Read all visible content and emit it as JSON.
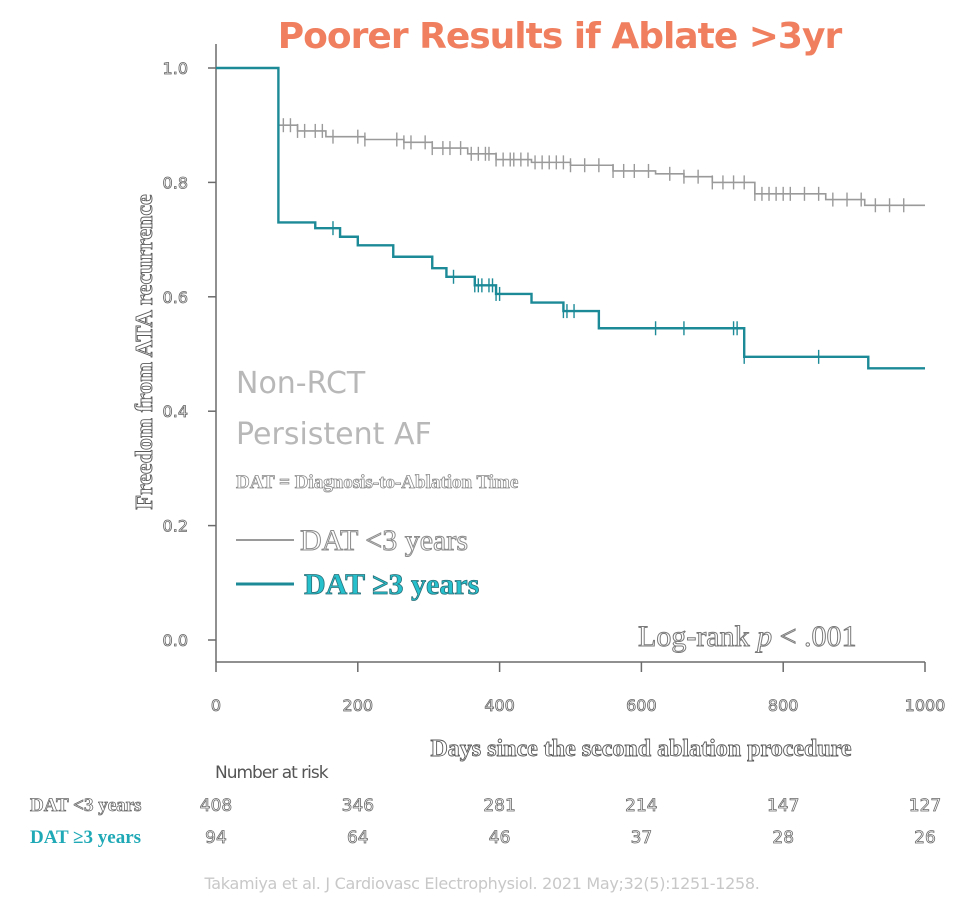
{
  "title": "Poorer Results if Ablate >3yr",
  "annotations": {
    "line1": "Non-RCT",
    "line2": "Persistent AF",
    "definition": "DAT = Diagnosis-to-Ablation Time",
    "logrank_prefix": "Log-rank ",
    "logrank_p": "p",
    "logrank_suffix": " < .001"
  },
  "legend": {
    "grey_label": "DAT <3 years",
    "teal_label": "DAT ≥3 years"
  },
  "risk_table": {
    "title": "Number at risk",
    "rows": [
      {
        "label": "DAT <3 years",
        "values": [
          "408",
          "346",
          "281",
          "214",
          "147",
          "127"
        ]
      },
      {
        "label": "DAT ≥3 years",
        "values": [
          "94",
          "64",
          "46",
          "37",
          "28",
          "26"
        ]
      }
    ]
  },
  "citation": "Takamiya et al. J Cardiovasc Electrophysiol. 2021 May;32(5):1251-1258.",
  "colors": {
    "title": "#f07f5f",
    "grey_series": "#9a9a9a",
    "teal_series": "#1c8a97",
    "axis": "#6b6b6b"
  },
  "chart_data": {
    "type": "line",
    "title": "",
    "xlabel": "Days since the second ablation procedure",
    "ylabel": "Freedom from ATA recurrence",
    "xlim": [
      0,
      1000
    ],
    "ylim": [
      0,
      1
    ],
    "xticks": [
      "0",
      "200",
      "400",
      "600",
      "800",
      "1000"
    ],
    "yticks": [
      "0.0",
      "0.2",
      "0.4",
      "0.6",
      "0.8",
      "1.0"
    ],
    "grid": false,
    "series": [
      {
        "name": "DAT <3 years",
        "color": "#9a9a9a",
        "steps": [
          [
            0,
            1.0
          ],
          [
            88,
            0.9
          ],
          [
            115,
            0.89
          ],
          [
            155,
            0.88
          ],
          [
            210,
            0.875
          ],
          [
            265,
            0.87
          ],
          [
            305,
            0.86
          ],
          [
            355,
            0.85
          ],
          [
            395,
            0.84
          ],
          [
            445,
            0.835
          ],
          [
            500,
            0.83
          ],
          [
            560,
            0.82
          ],
          [
            620,
            0.815
          ],
          [
            660,
            0.81
          ],
          [
            700,
            0.8
          ],
          [
            760,
            0.78
          ],
          [
            860,
            0.77
          ],
          [
            915,
            0.76
          ],
          [
            1000,
            0.76
          ]
        ],
        "censored": [
          95,
          105,
          115,
          125,
          140,
          150,
          165,
          200,
          210,
          255,
          265,
          275,
          295,
          305,
          320,
          330,
          345,
          360,
          370,
          380,
          385,
          395,
          405,
          415,
          420,
          430,
          440,
          450,
          460,
          470,
          480,
          490,
          500,
          520,
          540,
          560,
          575,
          590,
          610,
          640,
          660,
          680,
          700,
          715,
          730,
          745,
          760,
          770,
          780,
          790,
          800,
          810,
          830,
          850,
          870,
          890,
          910,
          930,
          950,
          970
        ]
      },
      {
        "name": "DAT ≥3 years",
        "color": "#1c8a97",
        "steps": [
          [
            0,
            1.0
          ],
          [
            88,
            0.73
          ],
          [
            140,
            0.72
          ],
          [
            175,
            0.705
          ],
          [
            200,
            0.69
          ],
          [
            250,
            0.67
          ],
          [
            305,
            0.65
          ],
          [
            325,
            0.635
          ],
          [
            365,
            0.62
          ],
          [
            395,
            0.605
          ],
          [
            445,
            0.59
          ],
          [
            490,
            0.575
          ],
          [
            540,
            0.545
          ],
          [
            745,
            0.495
          ],
          [
            920,
            0.475
          ],
          [
            1000,
            0.475
          ]
        ],
        "censored": [
          165,
          335,
          365,
          370,
          375,
          385,
          390,
          395,
          400,
          490,
          495,
          505,
          620,
          660,
          730,
          735,
          745,
          850
        ]
      }
    ]
  }
}
